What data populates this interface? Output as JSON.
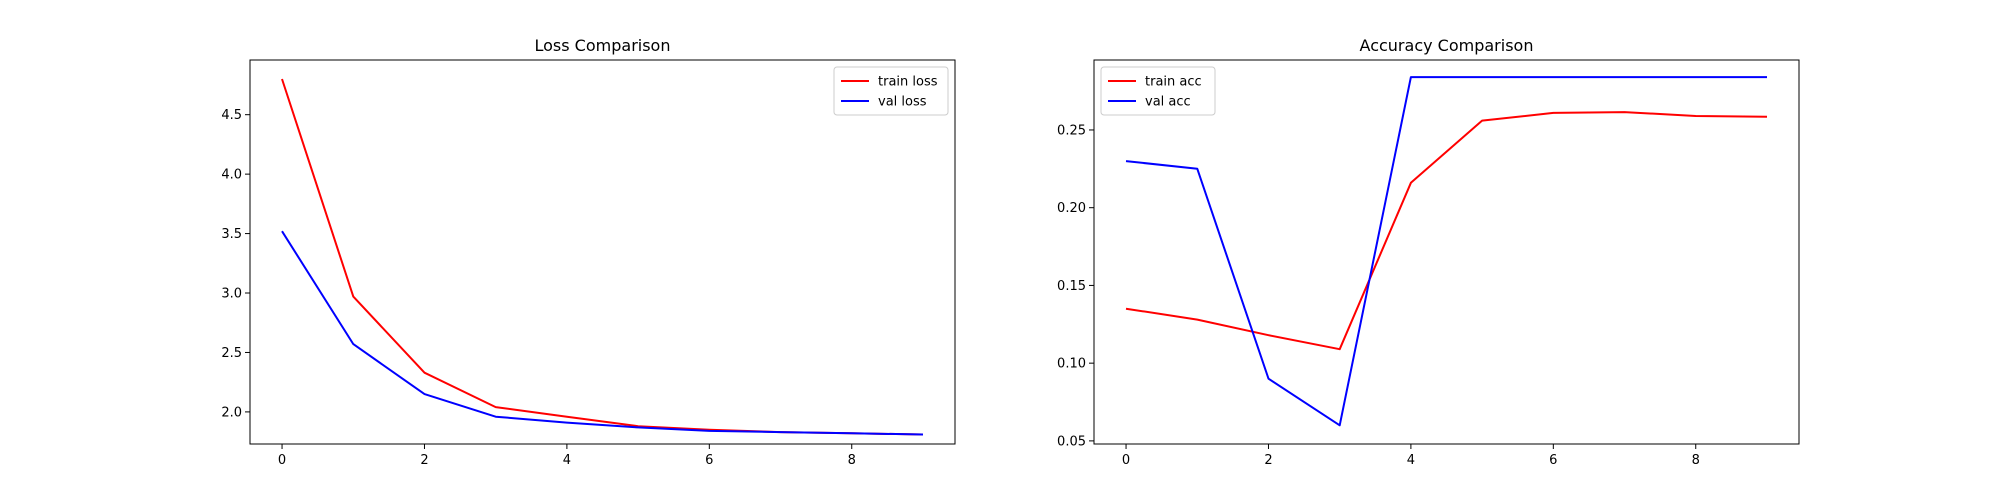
{
  "chart_data": [
    {
      "type": "line",
      "title": "Loss Comparison",
      "xlabel": "",
      "ylabel": "",
      "x": [
        0,
        1,
        2,
        3,
        4,
        5,
        6,
        7,
        8,
        9
      ],
      "xlim": [
        -0.45,
        9.45
      ],
      "ylim": [
        1.73,
        4.96
      ],
      "xticks": [
        0,
        2,
        4,
        6,
        8
      ],
      "yticks": [
        2.0,
        2.5,
        3.0,
        3.5,
        4.0,
        4.5
      ],
      "ytick_format": 1,
      "grid": false,
      "legend_position": "top-right",
      "series": [
        {
          "name": "train loss",
          "color": "#ff0000",
          "values": [
            4.8,
            2.97,
            2.33,
            2.04,
            1.96,
            1.88,
            1.85,
            1.83,
            1.82,
            1.81
          ]
        },
        {
          "name": "val loss",
          "color": "#0000ff",
          "values": [
            3.52,
            2.57,
            2.15,
            1.96,
            1.91,
            1.87,
            1.84,
            1.83,
            1.82,
            1.81
          ]
        }
      ]
    },
    {
      "type": "line",
      "title": "Accuracy Comparison",
      "xlabel": "",
      "ylabel": "",
      "x": [
        0,
        1,
        2,
        3,
        4,
        5,
        6,
        7,
        8,
        9
      ],
      "xlim": [
        -0.45,
        9.45
      ],
      "ylim": [
        0.048,
        0.295
      ],
      "xticks": [
        0,
        2,
        4,
        6,
        8
      ],
      "yticks": [
        0.05,
        0.1,
        0.15,
        0.2,
        0.25
      ],
      "ytick_format": 2,
      "grid": false,
      "legend_position": "top-left",
      "series": [
        {
          "name": "train acc",
          "color": "#ff0000",
          "values": [
            0.135,
            0.128,
            0.118,
            0.109,
            0.216,
            0.256,
            0.261,
            0.2615,
            0.259,
            0.2585
          ]
        },
        {
          "name": "val acc",
          "color": "#0000ff",
          "values": [
            0.23,
            0.225,
            0.09,
            0.06,
            0.284,
            0.284,
            0.284,
            0.284,
            0.284,
            0.284
          ]
        }
      ]
    }
  ]
}
